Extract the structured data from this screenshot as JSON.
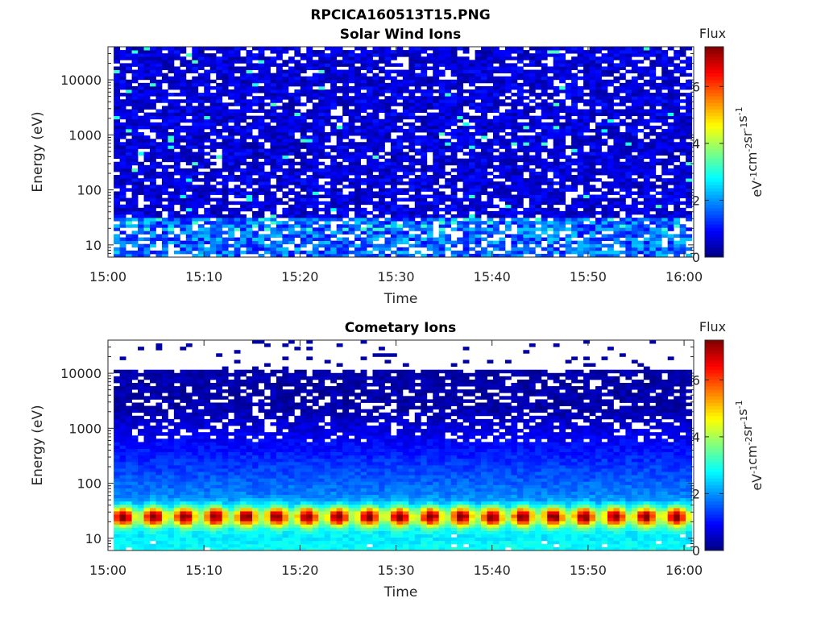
{
  "figure": {
    "title": "RPCICA160513T15.PNG"
  },
  "chart_data": [
    {
      "type": "heatmap",
      "title": "Solar Wind Ions",
      "xlabel": "Time",
      "ylabel": "Energy (eV)",
      "x_tick_labels": [
        "15:00",
        "15:10",
        "15:20",
        "15:30",
        "15:40",
        "15:50",
        "16:00"
      ],
      "xlim": [
        "15:00",
        "16:01"
      ],
      "y_scale": "log",
      "y_tick_labels": [
        "10",
        "100",
        "1000",
        "10000"
      ],
      "y_ticks": [
        10,
        100,
        1000,
        10000
      ],
      "ylim": [
        6,
        40000
      ],
      "colorbar": {
        "title": "Flux",
        "label": "eV-1cm-2sr-1s-1",
        "tick_labels": [
          "0",
          "2",
          "4",
          "6"
        ],
        "range": [
          0,
          7.4
        ],
        "colormap": "jet"
      },
      "description_values": {
        "background_flux_high_energy": 0.8,
        "low_energy_band_flux": 2.0,
        "low_energy_band_range_eV": [
          6,
          30
        ],
        "sparse_peaks_flux": 3.0
      }
    },
    {
      "type": "heatmap",
      "title": "Cometary Ions",
      "xlabel": "Time",
      "ylabel": "Energy (eV)",
      "x_tick_labels": [
        "15:00",
        "15:10",
        "15:20",
        "15:30",
        "15:40",
        "15:50",
        "16:00"
      ],
      "xlim": [
        "15:00",
        "16:01"
      ],
      "y_scale": "log",
      "y_tick_labels": [
        "10",
        "100",
        "1000",
        "10000"
      ],
      "y_ticks": [
        10,
        100,
        1000,
        10000
      ],
      "ylim": [
        6,
        40000
      ],
      "colorbar": {
        "title": "Flux",
        "label": "eV-1cm-2sr-1s-1",
        "tick_labels": [
          "0",
          "2",
          "4",
          "6"
        ],
        "range": [
          0,
          7.4
        ],
        "colormap": "jet"
      },
      "description_values": {
        "peak_energy_eV": 25,
        "peak_flux": 6.0,
        "peak_period_minutes": 3.2,
        "data_cutoff_eV": 11000
      }
    }
  ]
}
